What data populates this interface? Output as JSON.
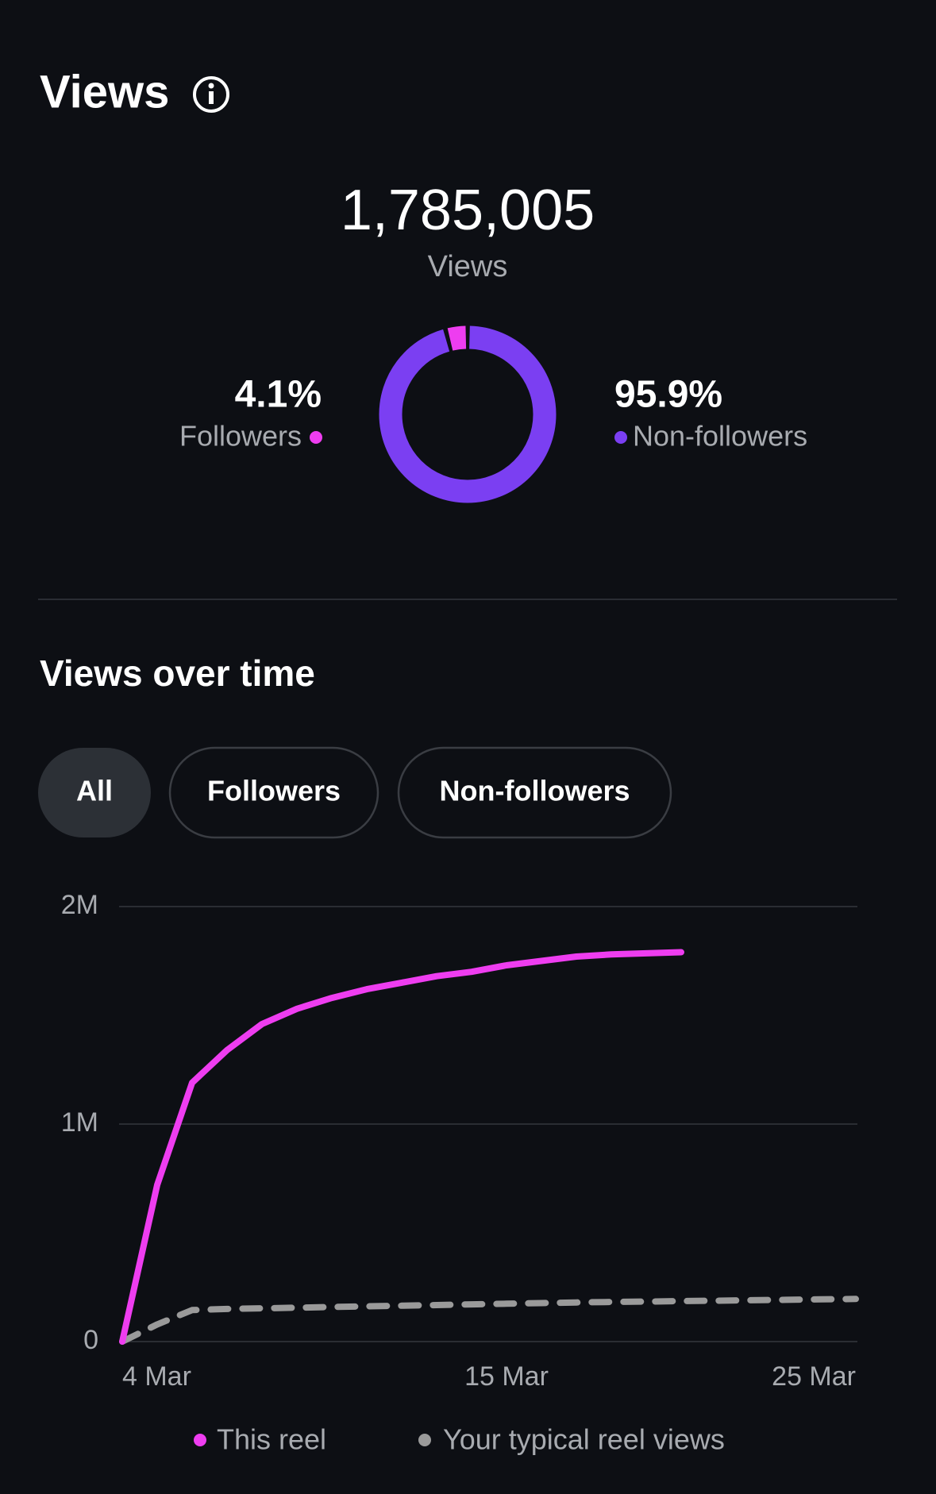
{
  "header": {
    "title": "Views"
  },
  "total": {
    "value": "1,785,005",
    "label": "Views"
  },
  "section_title": "Views over time",
  "filters": [
    "All",
    "Followers",
    "Non-followers"
  ],
  "chart_data": [
    {
      "type": "pie",
      "donut": true,
      "categories": [
        "Followers",
        "Non-followers"
      ],
      "values": [
        4.1,
        95.9
      ],
      "value_labels": [
        "4.1%",
        "95.9%"
      ],
      "colors": [
        "#ee3df0",
        "#7b3ff2"
      ]
    },
    {
      "type": "line",
      "x": [
        4,
        5,
        6,
        7,
        8,
        9,
        10,
        11,
        12,
        13,
        14,
        15,
        16,
        17,
        18,
        19,
        20,
        21,
        22,
        23,
        24,
        25
      ],
      "xlim": [
        4,
        25
      ],
      "xticks": [
        {
          "value": 4,
          "label": "4 Mar"
        },
        {
          "value": 15,
          "label": "15 Mar"
        },
        {
          "value": 25,
          "label": "25 Mar"
        }
      ],
      "ylim": [
        0,
        2000000
      ],
      "yticks": [
        {
          "value": 0,
          "label": "0"
        },
        {
          "value": 1000000,
          "label": "1M"
        },
        {
          "value": 2000000,
          "label": "2M"
        }
      ],
      "grid": true,
      "series": [
        {
          "name": "This reel",
          "color": "#ee3df0",
          "dashed": false,
          "values": [
            0,
            720000,
            1190000,
            1340000,
            1460000,
            1530000,
            1580000,
            1620000,
            1650000,
            1680000,
            1700000,
            1730000,
            1750000,
            1770000,
            1780000,
            1785000,
            1790000,
            null,
            null,
            null,
            null,
            null
          ]
        },
        {
          "name": "Your typical reel views",
          "color": "#9a9a9a",
          "dashed": true,
          "values": [
            0,
            79000,
            145000,
            150000,
            153000,
            156000,
            159000,
            162000,
            165000,
            168000,
            171000,
            174000,
            177000,
            180000,
            182000,
            184000,
            186000,
            188000,
            190000,
            192000,
            194000,
            196000
          ]
        }
      ]
    }
  ]
}
